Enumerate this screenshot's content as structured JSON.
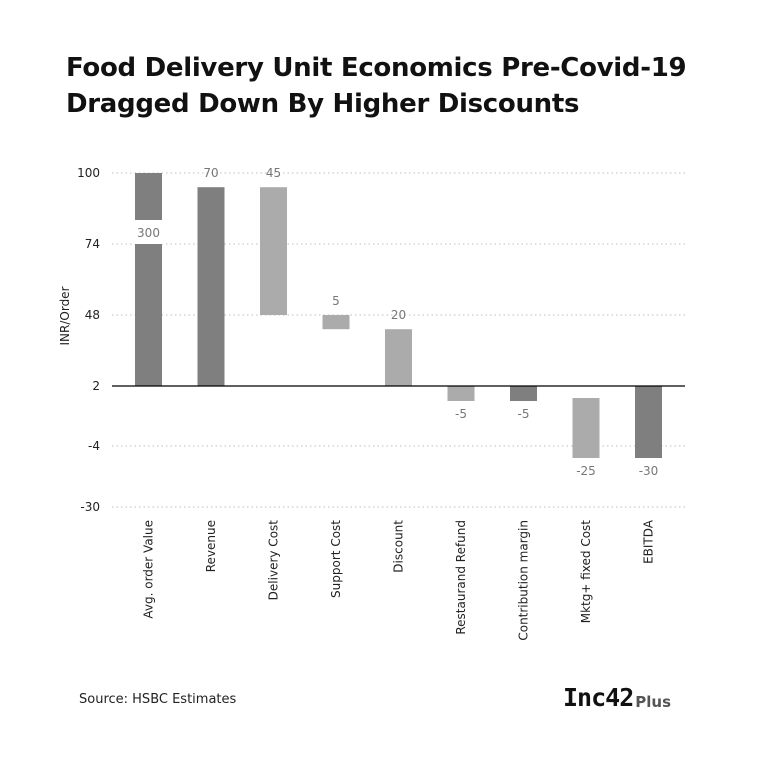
{
  "title_lines": [
    "Food Delivery Unit Economics Pre-Covid-19",
    "Dragged Down By Higher Discounts"
  ],
  "source": "Source: HSBC Estimates",
  "logo": {
    "main": "Inc42",
    "suffix": "Plus"
  },
  "colors": {
    "dark": "#7f7f7f",
    "light": "#ababab",
    "axis": "#000000",
    "grid": "#bfbfbf"
  },
  "chart_data": {
    "type": "bar",
    "subtype": "waterfall",
    "title": "Food Delivery Unit Economics Pre-Covid-19 Dragged Down By Higher Discounts",
    "ylabel": "INR/Order",
    "xlabel": "",
    "yticks": [
      "100",
      "74",
      "48",
      "2",
      "-4",
      "-30"
    ],
    "categories": [
      "Avg. order Value",
      "Revenue",
      "Delivery Cost",
      "Support Cost",
      "Discount",
      "Restaurand Refund",
      "Contribution  margin",
      "Mktg+  fixed Cost",
      "EBITDA"
    ],
    "values": [
      300,
      70,
      45,
      5,
      20,
      -5,
      -5,
      -25,
      -30
    ],
    "value_labels": [
      "300",
      "70",
      "45",
      "5",
      "20",
      "-5",
      "-5",
      "-25",
      "-30"
    ],
    "bar_tone": [
      "dark",
      "dark",
      "light",
      "light",
      "light",
      "light",
      "dark",
      "light",
      "dark"
    ],
    "axis_break_on_first_bar": true,
    "grid": true
  }
}
